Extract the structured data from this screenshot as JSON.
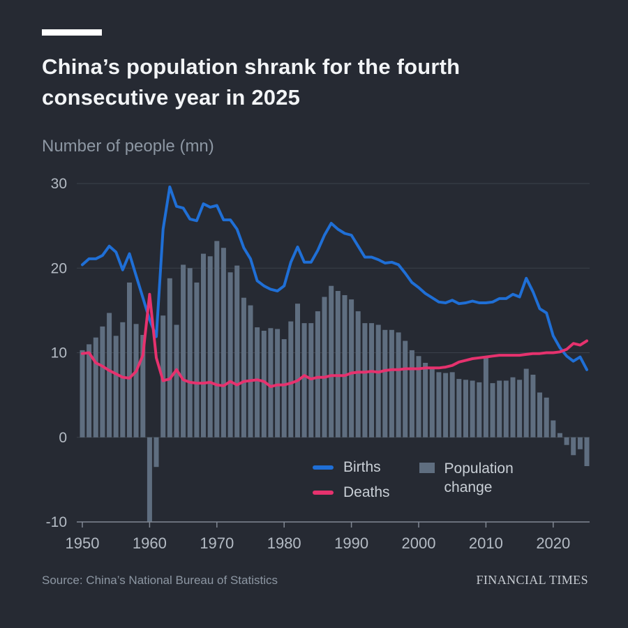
{
  "footer": {
    "source": "Source: China’s National Bureau of Statistics",
    "brand": "FINANCIAL TIMES"
  },
  "chart_data": {
    "type": "combo",
    "title": "China’s population shrank for the fourth consecutive year in 2025",
    "subtitle": "Number of people (mn)",
    "grid": "horizontal",
    "legend_position": "inside-bottom",
    "ylim": [
      -10,
      30
    ],
    "yticks": [
      -10,
      0,
      10,
      20,
      30
    ],
    "xticks": [
      1950,
      1960,
      1970,
      1980,
      1990,
      2000,
      2010,
      2020
    ],
    "colors": {
      "background": "#262a33",
      "grid": "#3b414b",
      "axis": "#818894",
      "tick_labels": "#b4bbc4",
      "title_text": "#f2f4f6",
      "subtitle_text": "#8d97a3"
    },
    "x": [
      1950,
      1951,
      1952,
      1953,
      1954,
      1955,
      1956,
      1957,
      1958,
      1959,
      1960,
      1961,
      1962,
      1963,
      1964,
      1965,
      1966,
      1967,
      1968,
      1969,
      1970,
      1971,
      1972,
      1973,
      1974,
      1975,
      1976,
      1977,
      1978,
      1979,
      1980,
      1981,
      1982,
      1983,
      1984,
      1985,
      1986,
      1987,
      1988,
      1989,
      1990,
      1991,
      1992,
      1993,
      1994,
      1995,
      1996,
      1997,
      1998,
      1999,
      2000,
      2001,
      2002,
      2003,
      2004,
      2005,
      2006,
      2007,
      2008,
      2009,
      2010,
      2011,
      2012,
      2013,
      2014,
      2015,
      2016,
      2017,
      2018,
      2019,
      2020,
      2021,
      2022,
      2023,
      2024,
      2025
    ],
    "series": [
      {
        "name": "Births",
        "type": "line",
        "color": "#1f6fd6",
        "values": [
          20.4,
          21.1,
          21.1,
          21.5,
          22.6,
          21.9,
          19.8,
          21.7,
          19.1,
          16.5,
          13.9,
          11.9,
          24.6,
          29.6,
          27.3,
          27.1,
          25.8,
          25.6,
          27.6,
          27.2,
          27.4,
          25.7,
          25.7,
          24.6,
          22.4,
          21.1,
          18.5,
          17.9,
          17.5,
          17.3,
          17.9,
          20.7,
          22.5,
          20.7,
          20.7,
          22.1,
          23.9,
          25.3,
          24.6,
          24.1,
          23.9,
          22.6,
          21.3,
          21.3,
          21.0,
          20.6,
          20.7,
          20.4,
          19.4,
          18.3,
          17.7,
          17.0,
          16.5,
          16.0,
          15.9,
          16.2,
          15.8,
          15.9,
          16.1,
          15.9,
          15.9,
          16.0,
          16.4,
          16.4,
          16.9,
          16.6,
          18.8,
          17.2,
          15.2,
          14.7,
          12.0,
          10.6,
          9.6,
          9.0,
          9.5,
          8.0
        ]
      },
      {
        "name": "Deaths",
        "type": "line",
        "color": "#e6326e",
        "values": [
          9.9,
          10.0,
          8.8,
          8.4,
          7.9,
          7.5,
          7.1,
          7.0,
          7.8,
          9.7,
          16.9,
          9.4,
          6.7,
          6.9,
          8.0,
          6.8,
          6.5,
          6.4,
          6.4,
          6.5,
          6.2,
          6.1,
          6.6,
          6.2,
          6.6,
          6.7,
          6.8,
          6.6,
          6.0,
          6.2,
          6.2,
          6.4,
          6.7,
          7.3,
          6.9,
          7.1,
          7.1,
          7.3,
          7.3,
          7.3,
          7.6,
          7.7,
          7.7,
          7.8,
          7.7,
          7.9,
          8.0,
          8.0,
          8.1,
          8.1,
          8.1,
          8.2,
          8.2,
          8.2,
          8.3,
          8.5,
          8.9,
          9.1,
          9.3,
          9.4,
          9.5,
          9.6,
          9.7,
          9.7,
          9.7,
          9.7,
          9.8,
          9.9,
          9.9,
          10.0,
          10.0,
          10.1,
          10.4,
          11.1,
          10.9,
          11.4
        ]
      },
      {
        "name": "Population change",
        "type": "bar",
        "color": "#5f6e80",
        "values": [
          10.3,
          11.0,
          11.8,
          13.1,
          14.7,
          12.0,
          13.6,
          18.3,
          13.4,
          12.1,
          -10.0,
          -3.5,
          14.4,
          18.8,
          13.3,
          20.4,
          20.0,
          18.3,
          21.7,
          21.4,
          23.2,
          22.4,
          19.5,
          20.3,
          16.5,
          15.6,
          13.0,
          12.6,
          12.9,
          12.8,
          11.6,
          13.7,
          15.8,
          13.5,
          13.5,
          14.9,
          16.6,
          17.9,
          17.3,
          16.8,
          16.3,
          14.9,
          13.5,
          13.5,
          13.3,
          12.7,
          12.7,
          12.4,
          11.4,
          10.3,
          9.6,
          8.8,
          8.3,
          7.7,
          7.6,
          7.7,
          6.9,
          6.8,
          6.7,
          6.5,
          9.6,
          6.4,
          6.7,
          6.7,
          7.1,
          6.8,
          8.1,
          7.4,
          5.3,
          4.7,
          2.0,
          0.5,
          -0.9,
          -2.1,
          -1.4,
          -3.4
        ]
      }
    ]
  }
}
